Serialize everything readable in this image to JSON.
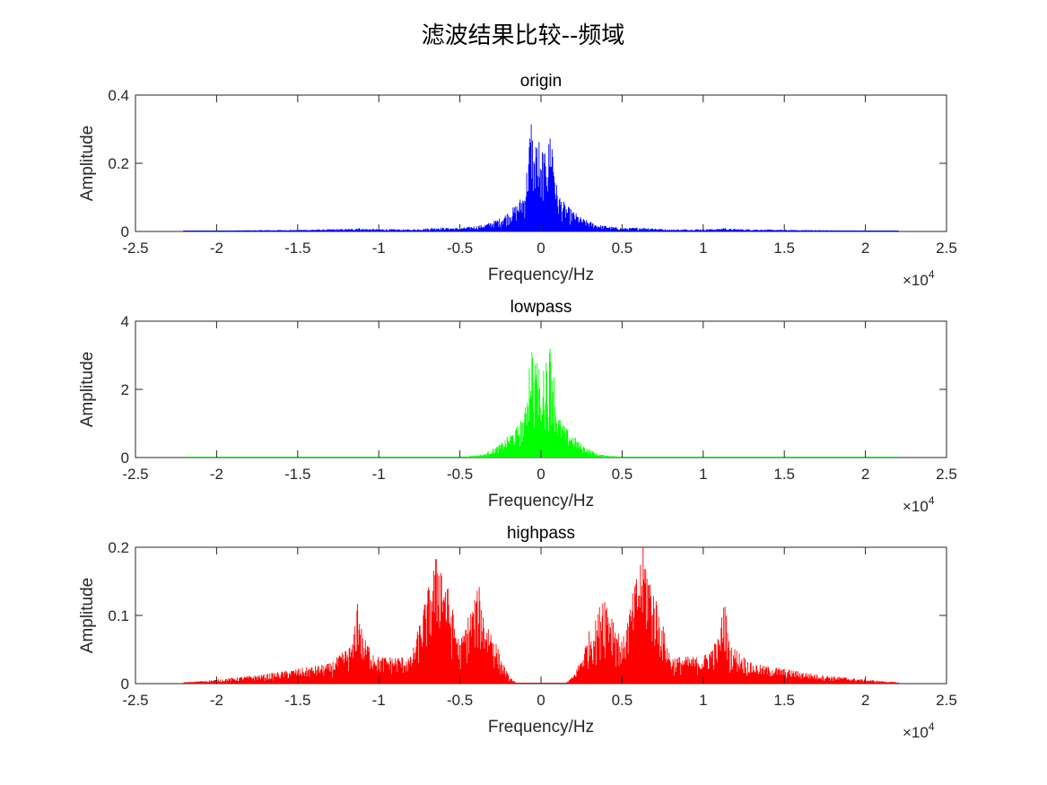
{
  "figure": {
    "title": "滤波结果比较--频域"
  },
  "chart_data": [
    {
      "type": "line",
      "title": "origin",
      "xlabel": "Frequency/Hz",
      "ylabel": "Amplitude",
      "color": "#0000ff",
      "xlim": [
        -25000,
        25000
      ],
      "ylim": [
        0,
        0.4
      ],
      "x_multiplier": "×10^4",
      "x_ticks": [
        "-2.5",
        "-2",
        "-1.5",
        "-1",
        "-0.5",
        "0",
        "0.5",
        "1",
        "1.5",
        "2",
        "2.5"
      ],
      "y_ticks": [
        "0",
        "0.2",
        "0.4"
      ],
      "x": [
        -22050,
        -20000,
        -15000,
        -11500,
        -11300,
        -11000,
        -8000,
        -6300,
        -5000,
        -3500,
        -2500,
        -1500,
        -1000,
        -600,
        -400,
        -300,
        -200,
        -100,
        0,
        100,
        200,
        300,
        400,
        600,
        1000,
        1500,
        2500,
        3500,
        5000,
        6300,
        8000,
        11000,
        11300,
        11500,
        15000,
        20000,
        22050
      ],
      "values": [
        0.002,
        0.003,
        0.005,
        0.008,
        0.012,
        0.008,
        0.006,
        0.012,
        0.01,
        0.02,
        0.04,
        0.08,
        0.12,
        0.34,
        0.22,
        0.34,
        0.2,
        0.3,
        0.12,
        0.3,
        0.2,
        0.34,
        0.22,
        0.34,
        0.12,
        0.08,
        0.04,
        0.02,
        0.01,
        0.012,
        0.006,
        0.008,
        0.012,
        0.008,
        0.005,
        0.003,
        0.002
      ]
    },
    {
      "type": "line",
      "title": "lowpass",
      "xlabel": "Frequency/Hz",
      "ylabel": "Amplitude",
      "color": "#00ff00",
      "xlim": [
        -25000,
        25000
      ],
      "ylim": [
        0,
        4
      ],
      "x_multiplier": "×10^4",
      "x_ticks": [
        "-2.5",
        "-2",
        "-1.5",
        "-1",
        "-0.5",
        "0",
        "0.5",
        "1",
        "1.5",
        "2",
        "2.5"
      ],
      "y_ticks": [
        "0",
        "2",
        "4"
      ],
      "x": [
        -22050,
        -15000,
        -8000,
        -5000,
        -3500,
        -2500,
        -1500,
        -1000,
        -600,
        -400,
        -300,
        -200,
        -100,
        0,
        100,
        200,
        300,
        400,
        600,
        1000,
        1500,
        2500,
        3500,
        5000,
        8000,
        15000,
        22050
      ],
      "values": [
        0.0,
        0.0,
        0.01,
        0.02,
        0.1,
        0.4,
        0.9,
        1.3,
        3.7,
        2.4,
        3.7,
        2.2,
        3.2,
        1.2,
        3.2,
        2.2,
        3.7,
        2.4,
        3.7,
        1.3,
        0.9,
        0.4,
        0.1,
        0.02,
        0.01,
        0.0,
        0.0
      ]
    },
    {
      "type": "line",
      "title": "highpass",
      "xlabel": "Frequency/Hz",
      "ylabel": "Amplitude",
      "color": "#ff0000",
      "xlim": [
        -25000,
        25000
      ],
      "ylim": [
        0,
        0.2
      ],
      "x_multiplier": "×10^4",
      "x_ticks": [
        "-2.5",
        "-2",
        "-1.5",
        "-1",
        "-0.5",
        "0",
        "0.5",
        "1",
        "1.5",
        "2",
        "2.5"
      ],
      "y_ticks": [
        "0",
        "0.1",
        "0.2"
      ],
      "x": [
        -22050,
        -20000,
        -17000,
        -15000,
        -13000,
        -11600,
        -11300,
        -11000,
        -10000,
        -8000,
        -6300,
        -5000,
        -4500,
        -3800,
        -3500,
        -3000,
        -2500,
        -2000,
        -1500,
        -1000,
        0,
        1000,
        1500,
        2000,
        2500,
        3000,
        3500,
        3800,
        4500,
        5000,
        6300,
        8000,
        10000,
        11000,
        11300,
        11600,
        13000,
        15000,
        17000,
        20000,
        22050
      ],
      "values": [
        0.002,
        0.006,
        0.014,
        0.022,
        0.03,
        0.06,
        0.133,
        0.07,
        0.04,
        0.04,
        0.205,
        0.06,
        0.1,
        0.145,
        0.1,
        0.08,
        0.04,
        0.012,
        0.0,
        0.0,
        0.0,
        0.0,
        0.0,
        0.012,
        0.04,
        0.08,
        0.1,
        0.145,
        0.1,
        0.06,
        0.205,
        0.04,
        0.04,
        0.07,
        0.133,
        0.06,
        0.03,
        0.022,
        0.014,
        0.006,
        0.002
      ]
    }
  ]
}
